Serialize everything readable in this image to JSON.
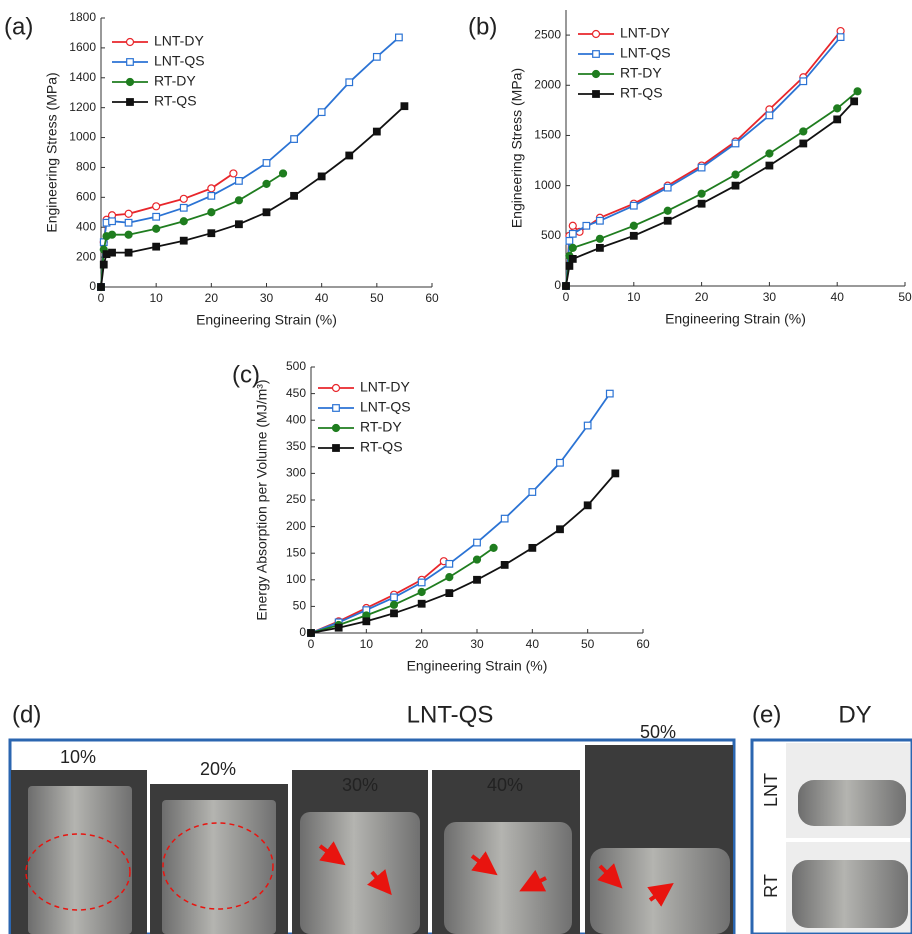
{
  "chart_data": [
    {
      "type": "line",
      "label": "(a)",
      "x_label": "Engineering Strain (%)",
      "y_label": "Engineering Stress (MPa)",
      "xlim": [
        0,
        60
      ],
      "xticks": [
        0,
        10,
        20,
        30,
        40,
        50,
        60
      ],
      "ylim": [
        0,
        1800
      ],
      "yticks": [
        0,
        200,
        400,
        600,
        800,
        1000,
        1200,
        1400,
        1600,
        1800
      ],
      "legend": "upper left",
      "series": [
        {
          "name": "LNT-DY",
          "color": "#e8262b",
          "marker": "circle-open",
          "x": [
            0,
            0.5,
            1,
            2,
            5,
            10,
            15,
            20,
            24
          ],
          "values": [
            0,
            300,
            450,
            480,
            490,
            540,
            590,
            660,
            760
          ]
        },
        {
          "name": "LNT-QS",
          "color": "#2b73d4",
          "marker": "square-open",
          "x": [
            0,
            0.5,
            1,
            2,
            5,
            10,
            15,
            20,
            25,
            30,
            35,
            40,
            45,
            50,
            54
          ],
          "values": [
            0,
            300,
            430,
            440,
            430,
            470,
            530,
            610,
            710,
            830,
            990,
            1170,
            1370,
            1540,
            1670
          ]
        },
        {
          "name": "RT-DY",
          "color": "#1f7d1f",
          "marker": "circle",
          "x": [
            0,
            0.5,
            1,
            2,
            5,
            10,
            15,
            20,
            25,
            30,
            33
          ],
          "values": [
            0,
            250,
            340,
            350,
            350,
            390,
            440,
            500,
            580,
            690,
            760
          ]
        },
        {
          "name": "RT-QS",
          "color": "#111111",
          "marker": "square",
          "x": [
            0,
            0.5,
            1,
            2,
            5,
            10,
            15,
            20,
            25,
            30,
            35,
            40,
            45,
            50,
            55
          ],
          "values": [
            0,
            150,
            220,
            230,
            230,
            270,
            310,
            360,
            420,
            500,
            610,
            740,
            880,
            1040,
            1210
          ]
        }
      ]
    },
    {
      "type": "line",
      "label": "(b)",
      "x_label": "Engineering Strain (%)",
      "y_label": "Engineering Stress (MPa)",
      "xlim": [
        0,
        50
      ],
      "xticks": [
        0,
        10,
        20,
        30,
        40,
        50
      ],
      "ylim": [
        0,
        2750
      ],
      "yticks": [
        0,
        500,
        1000,
        1500,
        2000,
        2500
      ],
      "legend": "upper left",
      "series": [
        {
          "name": "LNT-DY",
          "color": "#e8262b",
          "marker": "circle-open",
          "x": [
            0,
            0.5,
            1,
            2,
            5,
            10,
            15,
            20,
            25,
            30,
            35,
            40.5
          ],
          "values": [
            0,
            500,
            600,
            540,
            680,
            820,
            1000,
            1200,
            1440,
            1760,
            2080,
            2540
          ]
        },
        {
          "name": "LNT-QS",
          "color": "#2b73d4",
          "marker": "square-open",
          "x": [
            0,
            0.5,
            1,
            3,
            5,
            10,
            15,
            20,
            25,
            30,
            35,
            40.5
          ],
          "values": [
            0,
            450,
            520,
            600,
            650,
            800,
            980,
            1180,
            1420,
            1700,
            2040,
            2480
          ]
        },
        {
          "name": "RT-DY",
          "color": "#1f7d1f",
          "marker": "circle",
          "x": [
            0,
            0.5,
            1,
            5,
            10,
            15,
            20,
            25,
            30,
            35,
            40,
            43
          ],
          "values": [
            0,
            300,
            380,
            470,
            600,
            750,
            920,
            1110,
            1320,
            1540,
            1770,
            1940
          ]
        },
        {
          "name": "RT-QS",
          "color": "#111111",
          "marker": "square",
          "x": [
            0,
            0.5,
            1,
            5,
            10,
            15,
            20,
            25,
            30,
            35,
            40,
            42.5
          ],
          "values": [
            0,
            200,
            270,
            380,
            500,
            650,
            820,
            1000,
            1200,
            1420,
            1660,
            1840
          ]
        }
      ]
    },
    {
      "type": "line",
      "label": "(c)",
      "x_label": "Engineering Strain (%)",
      "y_label": "Energy Absorption per Volume (MJ/m³)",
      "xlim": [
        0,
        60
      ],
      "xticks": [
        0,
        10,
        20,
        30,
        40,
        50,
        60
      ],
      "ylim": [
        0,
        500
      ],
      "yticks": [
        0,
        50,
        100,
        150,
        200,
        250,
        300,
        350,
        400,
        450,
        500
      ],
      "legend": "upper left",
      "series": [
        {
          "name": "LNT-DY",
          "color": "#e8262b",
          "marker": "circle-open",
          "x": [
            0,
            5,
            10,
            15,
            20,
            24
          ],
          "values": [
            0,
            22,
            47,
            72,
            100,
            135
          ]
        },
        {
          "name": "LNT-QS",
          "color": "#2b73d4",
          "marker": "square-open",
          "x": [
            0,
            5,
            10,
            15,
            20,
            25,
            30,
            35,
            40,
            45,
            50,
            54
          ],
          "values": [
            0,
            20,
            43,
            67,
            95,
            130,
            170,
            215,
            265,
            320,
            390,
            450
          ]
        },
        {
          "name": "RT-DY",
          "color": "#1f7d1f",
          "marker": "circle",
          "x": [
            0,
            5,
            10,
            15,
            20,
            25,
            30,
            33
          ],
          "values": [
            0,
            15,
            33,
            53,
            77,
            105,
            138,
            160
          ]
        },
        {
          "name": "RT-QS",
          "color": "#111111",
          "marker": "square",
          "x": [
            0,
            5,
            10,
            15,
            20,
            25,
            30,
            35,
            40,
            45,
            50,
            55
          ],
          "values": [
            0,
            10,
            22,
            37,
            55,
            75,
            100,
            128,
            160,
            195,
            240,
            300
          ]
        }
      ]
    }
  ],
  "panel_d": {
    "label": "(d)",
    "title": "LNT-QS",
    "strains": [
      "10%",
      "20%",
      "30%",
      "40%",
      "50%"
    ]
  },
  "panel_e": {
    "label": "(e)",
    "title": "DY",
    "rows": [
      "LNT",
      "RT"
    ]
  }
}
